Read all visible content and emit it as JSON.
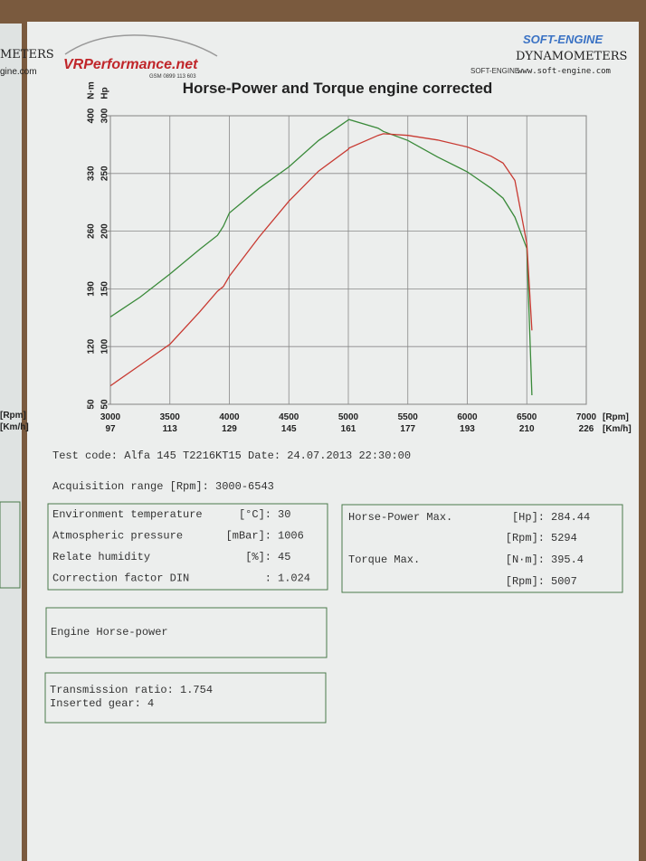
{
  "logos": {
    "vrp_name": "VRPerformance.net",
    "vrp_phone": "GSM 0899 113 603",
    "se_name": "SOFT-ENGINE",
    "se_sub": "DYNAMOMETERS",
    "se_mark": "SOFT-ENGINE",
    "se_url": "www.soft-engine.com"
  },
  "left_page": {
    "line1": "METERS",
    "line2": "gine.com",
    "unit1": "[Rpm]",
    "unit2": "[Km/h]"
  },
  "chart_data": {
    "type": "line",
    "title": "Horse-Power and Torque engine corrected",
    "ylabel": "N·m",
    "y2label": "Hp",
    "x_unit": "[Rpm]",
    "x2_unit": "[Km/h]",
    "x": [
      3000,
      3250,
      3500,
      3750,
      3900,
      3950,
      4000,
      4250,
      4500,
      4750,
      5000,
      5007,
      5250,
      5294,
      5500,
      5750,
      6000,
      6200,
      6300,
      6400,
      6500,
      6543
    ],
    "series": [
      {
        "name": "Torque",
        "color": "#3a8a3a",
        "axis": "y",
        "values": [
          156,
          180,
          208,
          238,
          255,
          266,
          282,
          312,
          338,
          370,
          395,
          395.4,
          385,
          381,
          370,
          350,
          332,
          312,
          300,
          277,
          239,
          61
        ]
      },
      {
        "name": "Horse-Power",
        "color": "#c83a32",
        "axis": "y2",
        "values": [
          66,
          84,
          102,
          130,
          148,
          152,
          161,
          195,
          226,
          252,
          271,
          272,
          283,
          284.44,
          283,
          279,
          273,
          265,
          259,
          244,
          189,
          114
        ]
      }
    ],
    "xlim": [
      3000,
      7000
    ],
    "xticks": [
      3000,
      3500,
      4000,
      4500,
      5000,
      5500,
      6000,
      6500,
      7000
    ],
    "x2_labels": [
      97,
      113,
      129,
      145,
      161,
      177,
      193,
      210,
      226
    ],
    "ylim": [
      50,
      400
    ],
    "yticks": [
      50,
      120,
      190,
      260,
      330,
      400
    ],
    "y2lim": [
      50,
      300
    ],
    "y2ticks": [
      50,
      100,
      150,
      200,
      250,
      300
    ],
    "grid": true
  },
  "test": {
    "line": "Test code: Alfa 145  T2216KT15  Date: 24.07.2013 22:30:00",
    "range": "Acquisition range [Rpm]: 3000-6543"
  },
  "environment": [
    [
      "Environment temperature",
      "[°C]:",
      "30"
    ],
    [
      "Atmospheric pressure",
      "[mBar]:",
      "1006"
    ],
    [
      "Relate humidity",
      "[%]:",
      "45"
    ],
    [
      "Correction factor DIN",
      ":",
      "1.024"
    ]
  ],
  "maxima": {
    "hp_label": "Horse-Power Max.",
    "hp_unit": "[Hp]:",
    "hp_value": "284.44",
    "hp_rpm_unit": "[Rpm]:",
    "hp_rpm": "5294",
    "tq_label": "Torque Max.",
    "tq_unit": "[N·m]:",
    "tq_value": "395.4",
    "tq_rpm_unit": "[Rpm]:",
    "tq_rpm": "5007"
  },
  "engine_box": "Engine Horse-power",
  "transmission": {
    "ratio": "Transmission ratio: 1.754",
    "gear": "Inserted gear: 4"
  }
}
